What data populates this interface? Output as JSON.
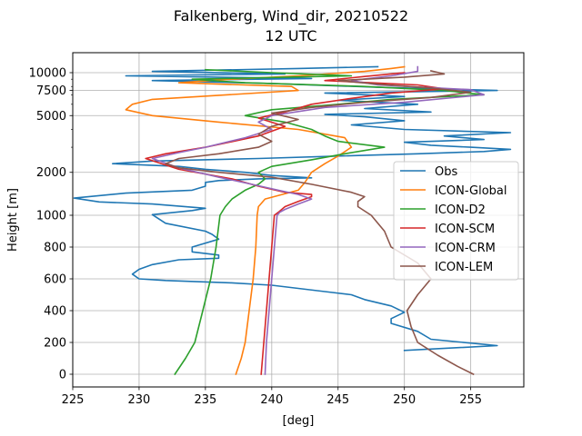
{
  "chart_data": {
    "type": "line",
    "title": "Falkenberg, Wind_dir, 20210522",
    "subtitle": "12 UTC",
    "xlabel": "[deg]",
    "ylabel": "Height [m]",
    "xlim": [
      225,
      259
    ],
    "x_ticks": [
      225,
      230,
      235,
      240,
      245,
      250,
      255
    ],
    "y_scale": "piecewise: linear 0-1000 m, logarithmic above 1000 m",
    "y_ticks": [
      {
        "value": 0,
        "label": "0"
      },
      {
        "value": 200,
        "label": "200"
      },
      {
        "value": 400,
        "label": "400"
      },
      {
        "value": 600,
        "label": "600"
      },
      {
        "value": 800,
        "label": "800"
      },
      {
        "value": 1000,
        "label": "1000"
      },
      {
        "value": 2000,
        "label": "2000"
      },
      {
        "value": 5000,
        "label": "5000"
      },
      {
        "value": 7500,
        "label": "7500"
      },
      {
        "value": 10000,
        "label": "10000"
      }
    ],
    "grid": true,
    "legend_position": "center-right",
    "series": [
      {
        "name": "Obs",
        "color": "#1f77b4",
        "points": [
          [
            250,
            150
          ],
          [
            257,
            180
          ],
          [
            252,
            220
          ],
          [
            251,
            270
          ],
          [
            249,
            320
          ],
          [
            249,
            350
          ],
          [
            250,
            390
          ],
          [
            249,
            430
          ],
          [
            247,
            470
          ],
          [
            246,
            500
          ],
          [
            244,
            520
          ],
          [
            240,
            560
          ],
          [
            237,
            575
          ],
          [
            232,
            590
          ],
          [
            230,
            600
          ],
          [
            229.5,
            630
          ],
          [
            230,
            660
          ],
          [
            231,
            690
          ],
          [
            233,
            720
          ],
          [
            236,
            730
          ],
          [
            236,
            750
          ],
          [
            234,
            770
          ],
          [
            234,
            800
          ],
          [
            236,
            850
          ],
          [
            235.5,
            880
          ],
          [
            235,
            900
          ],
          [
            232,
            950
          ],
          [
            231,
            1010
          ],
          [
            234,
            1080
          ],
          [
            235,
            1120
          ],
          [
            231,
            1200
          ],
          [
            227,
            1240
          ],
          [
            225.1,
            1320
          ],
          [
            229,
            1430
          ],
          [
            234,
            1500
          ],
          [
            235,
            1600
          ],
          [
            235,
            1700
          ],
          [
            236,
            1750
          ],
          [
            239,
            1800
          ],
          [
            243,
            1830
          ],
          [
            240,
            1900
          ],
          [
            238,
            2000
          ],
          [
            235,
            2100
          ],
          [
            233,
            2200
          ],
          [
            228,
            2300
          ],
          [
            231,
            2400
          ],
          [
            239,
            2500
          ],
          [
            245,
            2600
          ],
          [
            251,
            2700
          ],
          [
            256,
            2800
          ],
          [
            258,
            2900
          ],
          [
            255,
            3000
          ],
          [
            252,
            3100
          ],
          [
            250,
            3250
          ],
          [
            256,
            3400
          ],
          [
            253,
            3600
          ],
          [
            258,
            3800
          ],
          [
            250,
            4000
          ],
          [
            246,
            4300
          ],
          [
            250,
            4600
          ],
          [
            247,
            4900
          ],
          [
            244,
            5100
          ],
          [
            252,
            5300
          ],
          [
            247,
            5600
          ],
          [
            251,
            6000
          ],
          [
            245,
            6400
          ],
          [
            250,
            6800
          ],
          [
            244,
            7200
          ],
          [
            257,
            7500
          ],
          [
            248,
            7900
          ],
          [
            240,
            8400
          ],
          [
            231,
            8800
          ],
          [
            243,
            9100
          ],
          [
            229,
            9500
          ],
          [
            241,
            9800
          ],
          [
            231,
            10200
          ],
          [
            242,
            10700
          ],
          [
            248,
            11000
          ]
        ]
      },
      {
        "name": "ICON-Global",
        "color": "#ff7f0e",
        "points": [
          [
            237.3,
            0
          ],
          [
            237.7,
            100
          ],
          [
            238,
            200
          ],
          [
            238.3,
            400
          ],
          [
            238.6,
            600
          ],
          [
            238.8,
            800
          ],
          [
            238.9,
            1000
          ],
          [
            239,
            1150
          ],
          [
            239.5,
            1300
          ],
          [
            242,
            1500
          ],
          [
            242.5,
            1700
          ],
          [
            243,
            2000
          ],
          [
            244,
            2300
          ],
          [
            245,
            2600
          ],
          [
            246,
            3000
          ],
          [
            245.5,
            3500
          ],
          [
            242,
            4000
          ],
          [
            236,
            4500
          ],
          [
            231,
            5000
          ],
          [
            229,
            5500
          ],
          [
            229.5,
            6000
          ],
          [
            231,
            6500
          ],
          [
            242,
            7500
          ],
          [
            241.5,
            8000
          ],
          [
            233,
            8500
          ],
          [
            237,
            9000
          ],
          [
            242,
            9500
          ],
          [
            247,
            10200
          ],
          [
            249,
            10700
          ],
          [
            250,
            11000
          ]
        ]
      },
      {
        "name": "ICON-D2",
        "color": "#2ca02c",
        "points": [
          [
            232.7,
            0
          ],
          [
            233.5,
            100
          ],
          [
            234.2,
            200
          ],
          [
            234.8,
            400
          ],
          [
            235.4,
            600
          ],
          [
            235.8,
            800
          ],
          [
            236.1,
            1000
          ],
          [
            236.5,
            1150
          ],
          [
            237,
            1300
          ],
          [
            238,
            1500
          ],
          [
            239,
            1650
          ],
          [
            239.5,
            1800
          ],
          [
            239,
            2000
          ],
          [
            240,
            2200
          ],
          [
            243,
            2450
          ],
          [
            245.5,
            2700
          ],
          [
            248.5,
            3000
          ],
          [
            245,
            3300
          ],
          [
            244,
            3600
          ],
          [
            243,
            4000
          ],
          [
            241,
            4500
          ],
          [
            238,
            5000
          ],
          [
            240,
            5500
          ],
          [
            245,
            6000
          ],
          [
            249,
            6500
          ],
          [
            256,
            7000
          ],
          [
            253,
            7500
          ],
          [
            247,
            8000
          ],
          [
            238,
            8500
          ],
          [
            234,
            9000
          ],
          [
            246,
            9500
          ],
          [
            240,
            10000
          ],
          [
            235,
            10500
          ]
        ]
      },
      {
        "name": "ICON-SCM",
        "color": "#d62728",
        "points": [
          [
            239.2,
            0
          ],
          [
            239.4,
            200
          ],
          [
            239.6,
            400
          ],
          [
            239.8,
            600
          ],
          [
            240,
            800
          ],
          [
            240.2,
            1000
          ],
          [
            240.5,
            1050
          ],
          [
            241,
            1150
          ],
          [
            242,
            1250
          ],
          [
            243,
            1350
          ],
          [
            243,
            1400
          ],
          [
            241,
            1450
          ],
          [
            239,
            1600
          ],
          [
            237,
            1800
          ],
          [
            233,
            2100
          ],
          [
            230.5,
            2500
          ],
          [
            232,
            2700
          ],
          [
            235,
            3000
          ],
          [
            239,
            3600
          ],
          [
            241,
            4200
          ],
          [
            239,
            4800
          ],
          [
            241,
            5300
          ],
          [
            243,
            6000
          ],
          [
            246,
            6600
          ],
          [
            249,
            7200
          ],
          [
            253,
            7700
          ],
          [
            251,
            8200
          ],
          [
            244,
            8800
          ],
          [
            247,
            9400
          ],
          [
            250,
            10000
          ]
        ]
      },
      {
        "name": "ICON-CRM",
        "color": "#9467bd",
        "points": [
          [
            239.5,
            0
          ],
          [
            239.6,
            200
          ],
          [
            239.8,
            400
          ],
          [
            240,
            600
          ],
          [
            240.2,
            800
          ],
          [
            240.4,
            1000
          ],
          [
            240.6,
            1050
          ],
          [
            241,
            1100
          ],
          [
            242,
            1200
          ],
          [
            243,
            1300
          ],
          [
            242,
            1400
          ],
          [
            240.5,
            1500
          ],
          [
            238.5,
            1650
          ],
          [
            236,
            1850
          ],
          [
            233,
            2150
          ],
          [
            231,
            2500
          ],
          [
            233,
            2750
          ],
          [
            235,
            3000
          ],
          [
            238,
            3500
          ],
          [
            240,
            4000
          ],
          [
            239,
            4500
          ],
          [
            240,
            5000
          ],
          [
            244,
            5700
          ],
          [
            250,
            6200
          ],
          [
            256,
            7000
          ],
          [
            255,
            7600
          ],
          [
            248,
            8200
          ],
          [
            246,
            8800
          ],
          [
            249,
            9500
          ],
          [
            251,
            10200
          ],
          [
            251,
            11000
          ]
        ]
      },
      {
        "name": "ICON-LEM",
        "color": "#8c564b",
        "points": [
          [
            255.2,
            0
          ],
          [
            254,
            50
          ],
          [
            252.5,
            120
          ],
          [
            251,
            200
          ],
          [
            250.5,
            300
          ],
          [
            250.2,
            400
          ],
          [
            251,
            500
          ],
          [
            252,
            600
          ],
          [
            251,
            700
          ],
          [
            249,
            800
          ],
          [
            248.5,
            900
          ],
          [
            247.5,
            1000
          ],
          [
            246.5,
            1150
          ],
          [
            246.5,
            1250
          ],
          [
            247,
            1350
          ],
          [
            246,
            1450
          ],
          [
            243,
            1650
          ],
          [
            240,
            1850
          ],
          [
            236,
            2000
          ],
          [
            233,
            2150
          ],
          [
            232,
            2300
          ],
          [
            233,
            2500
          ],
          [
            236,
            2700
          ],
          [
            239,
            3000
          ],
          [
            240,
            3300
          ],
          [
            239,
            3700
          ],
          [
            240,
            4200
          ],
          [
            242,
            4700
          ],
          [
            240,
            5200
          ],
          [
            243,
            5700
          ],
          [
            247,
            6200
          ],
          [
            252,
            6700
          ],
          [
            255,
            7300
          ],
          [
            252,
            7800
          ],
          [
            248,
            8300
          ],
          [
            245,
            8800
          ],
          [
            250,
            9300
          ],
          [
            253,
            9800
          ],
          [
            252,
            10300
          ]
        ]
      }
    ]
  }
}
